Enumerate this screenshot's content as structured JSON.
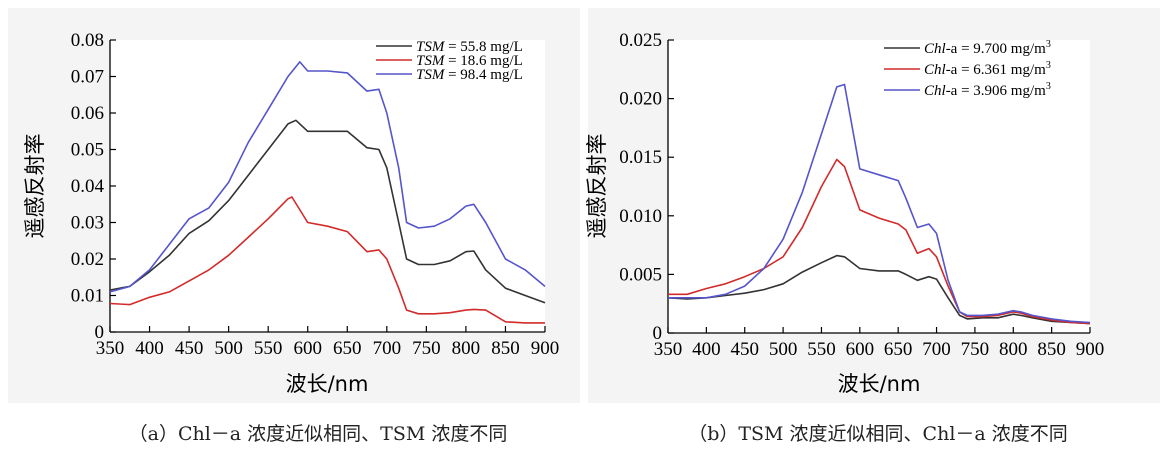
{
  "chart_data": [
    {
      "type": "line",
      "xlabel": "波长/nm",
      "ylabel": "遥感反射率",
      "xlim": [
        350,
        900
      ],
      "ylim": [
        0,
        0.08
      ],
      "xticks": [
        "350",
        "400",
        "450",
        "500",
        "550",
        "600",
        "650",
        "700",
        "750",
        "800",
        "850",
        "900"
      ],
      "yticks": [
        "0",
        "0.01",
        "0.02",
        "0.03",
        "0.04",
        "0.05",
        "0.06",
        "0.07",
        "0.08"
      ],
      "legend_placement": "top-right",
      "caption": "（a）Chl－a 浓度近似相同、TSM 浓度不同",
      "series": [
        {
          "name_var": "TSM",
          "name_rest": " = 55.8 mg/L",
          "color": "#333333",
          "x": [
            350,
            375,
            400,
            425,
            450,
            475,
            500,
            525,
            550,
            575,
            585,
            600,
            625,
            650,
            675,
            690,
            700,
            715,
            725,
            740,
            760,
            780,
            800,
            810,
            825,
            850,
            875,
            900
          ],
          "y": [
            0.0115,
            0.0125,
            0.0165,
            0.021,
            0.027,
            0.0305,
            0.036,
            0.043,
            0.05,
            0.057,
            0.058,
            0.055,
            0.055,
            0.055,
            0.0505,
            0.05,
            0.045,
            0.03,
            0.02,
            0.0185,
            0.0185,
            0.0195,
            0.022,
            0.0222,
            0.017,
            0.012,
            0.01,
            0.008
          ]
        },
        {
          "name_var": "TSM",
          "name_rest": " = 18.6 mg/L",
          "color": "#d22b2b",
          "x": [
            350,
            375,
            400,
            425,
            450,
            475,
            500,
            525,
            550,
            575,
            580,
            600,
            625,
            650,
            675,
            690,
            700,
            715,
            725,
            740,
            760,
            780,
            800,
            810,
            825,
            850,
            875,
            900
          ],
          "y": [
            0.0078,
            0.0075,
            0.0095,
            0.011,
            0.014,
            0.017,
            0.021,
            0.026,
            0.031,
            0.0365,
            0.037,
            0.03,
            0.029,
            0.0275,
            0.022,
            0.0225,
            0.02,
            0.012,
            0.006,
            0.005,
            0.005,
            0.0053,
            0.006,
            0.0062,
            0.006,
            0.0028,
            0.0025,
            0.0025
          ]
        },
        {
          "name_var": "TSM",
          "name_rest": " = 98.4 mg/L",
          "color": "#5555cc",
          "x": [
            350,
            375,
            400,
            425,
            450,
            475,
            500,
            525,
            550,
            575,
            590,
            600,
            625,
            650,
            675,
            690,
            700,
            715,
            725,
            740,
            760,
            780,
            800,
            810,
            825,
            850,
            875,
            900
          ],
          "y": [
            0.011,
            0.0125,
            0.017,
            0.024,
            0.031,
            0.034,
            0.041,
            0.052,
            0.061,
            0.07,
            0.074,
            0.0715,
            0.0715,
            0.071,
            0.066,
            0.0665,
            0.06,
            0.045,
            0.03,
            0.0285,
            0.029,
            0.031,
            0.0345,
            0.035,
            0.03,
            0.02,
            0.017,
            0.0125
          ]
        }
      ]
    },
    {
      "type": "line",
      "xlabel": "波长/nm",
      "ylabel": "遥感反射率",
      "xlim": [
        350,
        900
      ],
      "ylim": [
        0,
        0.025
      ],
      "xticks": [
        "350",
        "400",
        "450",
        "500",
        "550",
        "600",
        "650",
        "700",
        "750",
        "800",
        "850",
        "900"
      ],
      "yticks": [
        "0",
        "0.005",
        "0.010",
        "0.015",
        "0.020",
        "0.025"
      ],
      "legend_placement": "top-right",
      "caption": "（b）TSM 浓度近似相同、Chl－a 浓度不同",
      "series": [
        {
          "name_var": "Chl",
          "name_rest": "-a = 9.700 mg/m",
          "name_sup": "3",
          "color": "#333333",
          "x": [
            350,
            375,
            400,
            425,
            450,
            475,
            500,
            525,
            550,
            570,
            580,
            600,
            625,
            650,
            660,
            675,
            690,
            700,
            715,
            730,
            740,
            760,
            780,
            800,
            810,
            825,
            850,
            875,
            900
          ],
          "y": [
            0.003,
            0.0029,
            0.003,
            0.0032,
            0.0034,
            0.0037,
            0.0042,
            0.0052,
            0.006,
            0.0066,
            0.0065,
            0.0055,
            0.0053,
            0.0053,
            0.005,
            0.0045,
            0.0048,
            0.0046,
            0.003,
            0.0015,
            0.0012,
            0.0013,
            0.0013,
            0.0016,
            0.0015,
            0.0013,
            0.001,
            0.0009,
            0.0008
          ]
        },
        {
          "name_var": "Chl",
          "name_rest": "-a = 6.361 mg/m",
          "name_sup": "3",
          "color": "#d22b2b",
          "x": [
            350,
            375,
            400,
            425,
            450,
            475,
            500,
            525,
            550,
            570,
            580,
            600,
            625,
            650,
            660,
            675,
            690,
            700,
            715,
            730,
            740,
            760,
            780,
            800,
            810,
            825,
            850,
            875,
            900
          ],
          "y": [
            0.0033,
            0.0033,
            0.0038,
            0.0042,
            0.0048,
            0.0055,
            0.0065,
            0.009,
            0.0125,
            0.0148,
            0.0142,
            0.0105,
            0.0098,
            0.0093,
            0.0088,
            0.0068,
            0.0072,
            0.0065,
            0.004,
            0.0018,
            0.0014,
            0.0014,
            0.0015,
            0.0018,
            0.0017,
            0.0014,
            0.0011,
            0.0009,
            0.0008
          ]
        },
        {
          "name_var": "Chl",
          "name_rest": "-a = 3.906 mg/m",
          "name_sup": "3",
          "color": "#5555cc",
          "x": [
            350,
            375,
            400,
            425,
            450,
            475,
            500,
            525,
            550,
            570,
            580,
            600,
            625,
            650,
            660,
            675,
            690,
            700,
            715,
            730,
            740,
            760,
            780,
            800,
            810,
            825,
            850,
            875,
            900
          ],
          "y": [
            0.003,
            0.003,
            0.003,
            0.0033,
            0.004,
            0.0055,
            0.008,
            0.012,
            0.017,
            0.021,
            0.0212,
            0.014,
            0.0135,
            0.013,
            0.0115,
            0.009,
            0.0093,
            0.0085,
            0.0045,
            0.0018,
            0.0015,
            0.0015,
            0.0016,
            0.0019,
            0.0018,
            0.0015,
            0.0012,
            0.001,
            0.0009
          ]
        }
      ]
    }
  ]
}
